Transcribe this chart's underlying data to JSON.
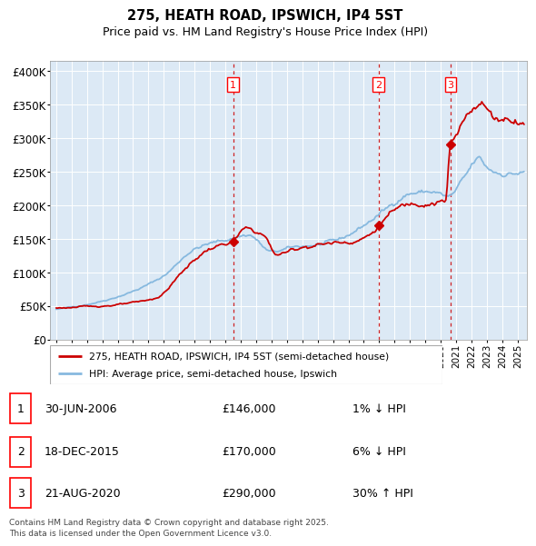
{
  "title_line1": "275, HEATH ROAD, IPSWICH, IP4 5ST",
  "title_line2": "Price paid vs. HM Land Registry's House Price Index (HPI)",
  "ylabel_ticks": [
    "£0",
    "£50K",
    "£100K",
    "£150K",
    "£200K",
    "£250K",
    "£300K",
    "£350K",
    "£400K"
  ],
  "ytick_values": [
    0,
    50000,
    100000,
    150000,
    200000,
    250000,
    300000,
    350000,
    400000
  ],
  "ylim": [
    0,
    415000
  ],
  "xlim_start": 1994.6,
  "xlim_end": 2025.6,
  "bg_color": "#dce9f5",
  "grid_color": "#ffffff",
  "hpi_color": "#87b9df",
  "price_color": "#cc0000",
  "marker_color": "#cc0000",
  "vline_color": "#cc0000",
  "sale_events": [
    {
      "label": "1",
      "date_num": 2006.5,
      "price": 146000
    },
    {
      "label": "2",
      "date_num": 2015.96,
      "price": 170000
    },
    {
      "label": "3",
      "date_num": 2020.64,
      "price": 290000
    }
  ],
  "legend_entries": [
    "275, HEATH ROAD, IPSWICH, IP4 5ST (semi-detached house)",
    "HPI: Average price, semi-detached house, Ipswich"
  ],
  "table_rows": [
    {
      "num": "1",
      "date": "30-JUN-2006",
      "price": "£146,000",
      "hpi": "1% ↓ HPI"
    },
    {
      "num": "2",
      "date": "18-DEC-2015",
      "price": "£170,000",
      "hpi": "6% ↓ HPI"
    },
    {
      "num": "3",
      "date": "21-AUG-2020",
      "price": "£290,000",
      "hpi": "30% ↑ HPI"
    }
  ],
  "footer": "Contains HM Land Registry data © Crown copyright and database right 2025.\nThis data is licensed under the Open Government Licence v3.0.",
  "fig_width": 6.0,
  "fig_height": 5.9,
  "dpi": 100
}
